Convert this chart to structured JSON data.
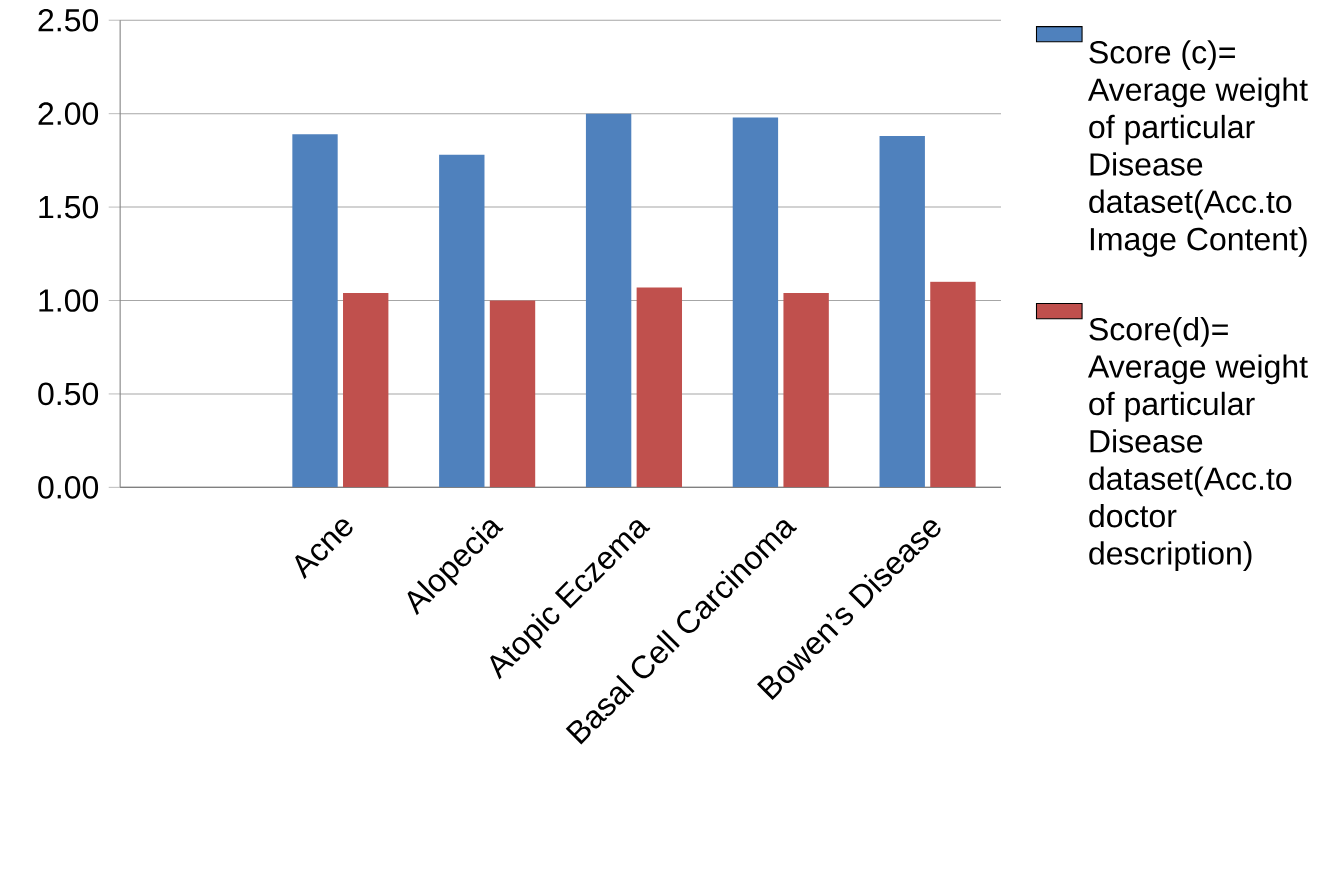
{
  "chart_data": {
    "type": "bar",
    "categories": [
      null,
      "Acne",
      "Alopecia",
      "Atopic Eczema",
      "Basal Cell Carcinoma",
      "Bowen’s Disease"
    ],
    "series": [
      {
        "name": "Score (c)= Average weight of particular Disease dataset(Acc.to Image Content)",
        "color": "#4f81bd",
        "values": [
          null,
          1.89,
          1.78,
          2.0,
          1.98,
          1.88
        ]
      },
      {
        "name": "Score(d)= Average weight of particular Disease dataset(Acc.to doctor description)",
        "color": "#c0504d",
        "values": [
          null,
          1.04,
          1.0,
          1.07,
          1.04,
          1.1
        ]
      }
    ],
    "ylim": [
      0,
      2.5
    ],
    "yticks": [
      {
        "value": 0,
        "label": "0.00"
      },
      {
        "value": 0.5,
        "label": "0.50"
      },
      {
        "value": 1,
        "label": "1.00"
      },
      {
        "value": 1.5,
        "label": "1.50"
      },
      {
        "value": 2,
        "label": "2.00"
      },
      {
        "value": 2.5,
        "label": "2.50"
      }
    ],
    "grid": "y",
    "legend": "right"
  }
}
